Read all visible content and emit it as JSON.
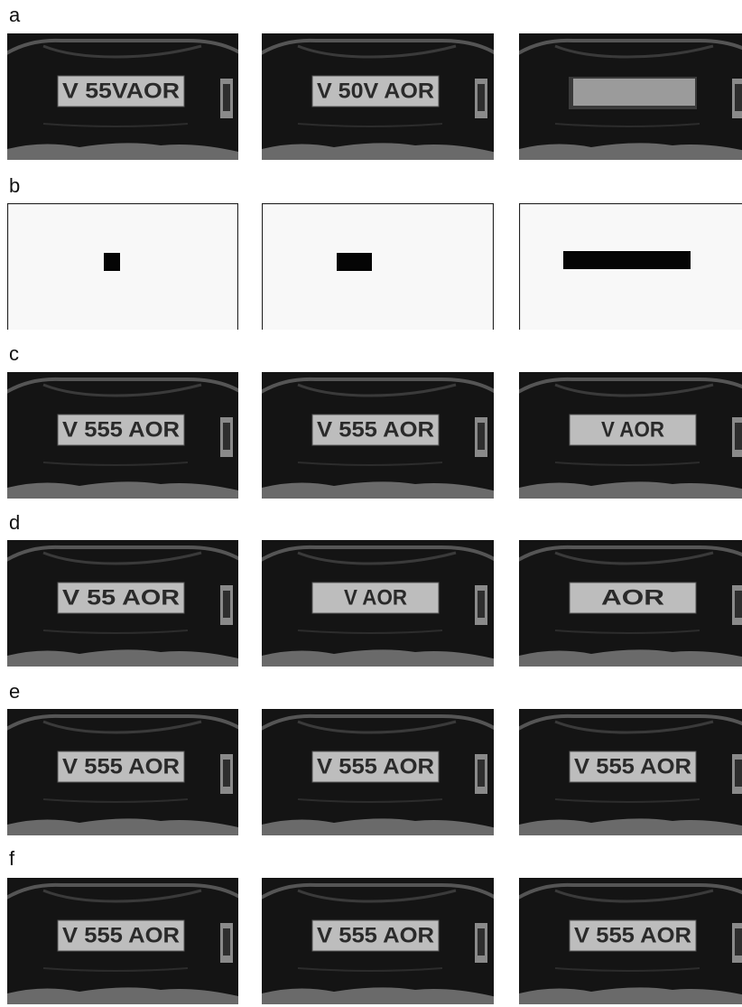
{
  "rows": [
    {
      "label": "a",
      "plates": [
        "V 55VAOR",
        "V 50V AOR",
        null
      ]
    },
    {
      "label": "b"
    },
    {
      "label": "c",
      "plates": [
        "V 555 AOR",
        "V 555 AOR",
        "V AOR"
      ]
    },
    {
      "label": "d",
      "plates": [
        "V 55 AOR",
        "V AOR",
        "AOR"
      ]
    },
    {
      "label": "e",
      "plates": [
        "V 555 AOR",
        "V 555 AOR",
        "V 555 AOR"
      ]
    },
    {
      "label": "f",
      "plates": [
        "V 555 AOR",
        "V 555 AOR",
        "V 555 AOR"
      ]
    }
  ]
}
